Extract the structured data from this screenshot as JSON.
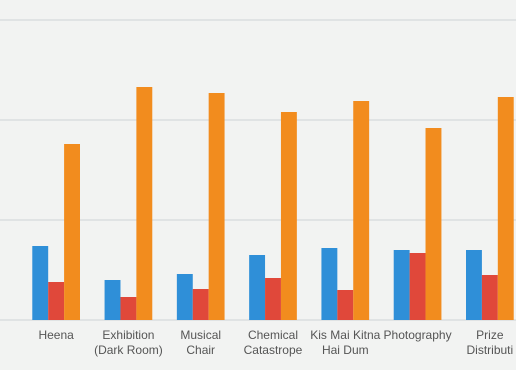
{
  "chart_data": {
    "type": "bar",
    "categories": [
      "Heena",
      "Exhibition (Dark Room)",
      "Musical Chair",
      "Chemical Catastrope",
      "Kis Mai Kitna Hai Dum",
      "Photography",
      "Prize Distributi"
    ],
    "series": [
      {
        "color": "#2f8fd8",
        "values": [
          74,
          40,
          46,
          65,
          72,
          70,
          70
        ]
      },
      {
        "color": "#e0483a",
        "values": [
          38,
          23,
          31,
          42,
          30,
          67,
          45
        ]
      },
      {
        "color": "#f28c1e",
        "values": [
          176,
          233,
          227,
          208,
          219,
          192,
          223
        ]
      }
    ],
    "ylim": [
      0,
      300
    ],
    "yticks": [
      0,
      100,
      200,
      300
    ],
    "grid": true
  }
}
